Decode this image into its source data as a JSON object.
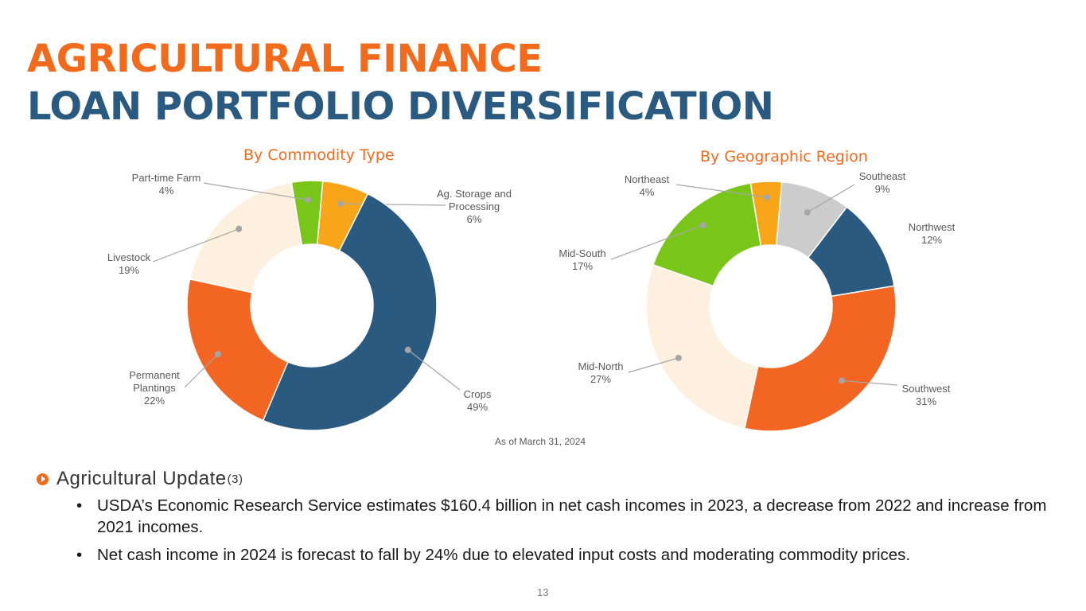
{
  "header": {
    "title_line1": "AGRICULTURAL FINANCE",
    "title_line2": "LOAN PORTFOLIO DIVERSIFICATION"
  },
  "chart_data": [
    {
      "type": "pie",
      "title": "By Commodity Type",
      "categories": [
        "Ag. Storage and Processing",
        "Crops",
        "Permanent Plantings",
        "Livestock",
        "Part-time Farm"
      ],
      "label_lines": [
        [
          "Ag. Storage and",
          "Processing",
          "6%"
        ],
        [
          "Crops",
          "49%"
        ],
        [
          "Permanent",
          "Plantings",
          "22%"
        ],
        [
          "Livestock",
          "19%"
        ],
        [
          "Part-time Farm",
          "4%"
        ]
      ],
      "values": [
        6,
        49,
        22,
        19,
        4
      ],
      "colors": [
        "#f9a51a",
        "#2a5a7f",
        "#f26522",
        "#fdf0de",
        "#7ac51a"
      ],
      "donut": true
    },
    {
      "type": "pie",
      "title": "By Geographic Region",
      "categories": [
        "Southeast",
        "Northwest",
        "Southwest",
        "Mid-North",
        "Mid-South",
        "Northeast"
      ],
      "label_lines": [
        [
          "Southeast",
          "9%"
        ],
        [
          "Northwest",
          "12%"
        ],
        [
          "Southwest",
          "31%"
        ],
        [
          "Mid-North",
          "27%"
        ],
        [
          "Mid-South",
          "17%"
        ],
        [
          "Northeast",
          "4%"
        ]
      ],
      "values": [
        9,
        12,
        31,
        27,
        17,
        4
      ],
      "colors": [
        "#cccccc",
        "#2a5a7f",
        "#f26522",
        "#fdf0de",
        "#7ac51a",
        "#f9a51a"
      ],
      "donut": true
    }
  ],
  "as_of": "As of March 31, 2024",
  "update": {
    "heading": "Agricultural Update",
    "footnote": "(3)",
    "bullets": [
      "USDA’s Economic Research Service estimates $160.4 billion in net cash incomes in 2023, a decrease from 2022 and increase from 2021 incomes.",
      "Net cash income in 2024 is forecast to fall by 24% due to elevated input costs and moderating commodity prices."
    ]
  },
  "page_number": "13"
}
